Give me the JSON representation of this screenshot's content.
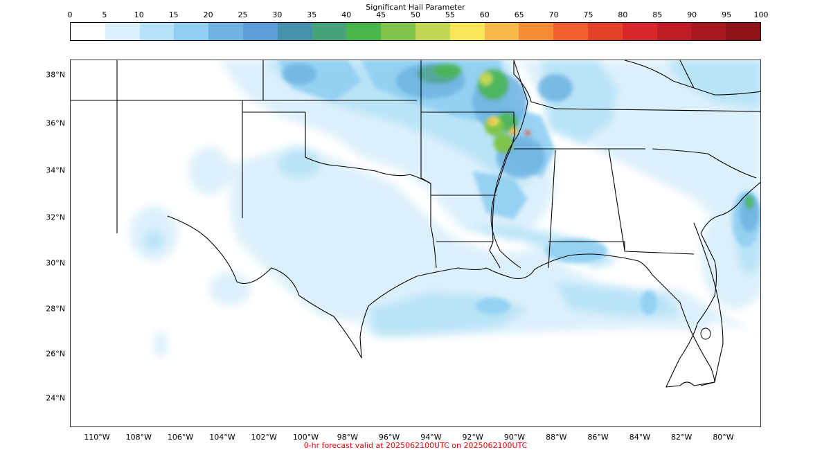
{
  "colorbar": {
    "title": "Significant Hail Parameter",
    "ticks": [
      "0",
      "5",
      "10",
      "15",
      "20",
      "25",
      "30",
      "35",
      "40",
      "45",
      "50",
      "55",
      "60",
      "65",
      "70",
      "75",
      "80",
      "85",
      "90",
      "95",
      "100"
    ],
    "colors": [
      "#ffffff",
      "#dbf0fb",
      "#b6e2f7",
      "#90cff2",
      "#6eb3e2",
      "#5a9ed8",
      "#4491ad",
      "#48a37c",
      "#49b54b",
      "#80c34a",
      "#c2d854",
      "#fae55a",
      "#f8b849",
      "#f58c34",
      "#f05f2c",
      "#e44228",
      "#d6282a",
      "#c01c25",
      "#a7191f",
      "#8d1317"
    ]
  },
  "map": {
    "lat_labels": [
      "38°N",
      "36°N",
      "34°N",
      "32°N",
      "30°N",
      "28°N",
      "26°N",
      "24°N"
    ],
    "lon_labels": [
      "110°W",
      "108°W",
      "106°W",
      "104°W",
      "102°W",
      "100°W",
      "98°W",
      "96°W",
      "94°W",
      "92°W",
      "90°W",
      "88°W",
      "86°W",
      "84°W",
      "82°W",
      "80°W"
    ],
    "boundary_color": "#000000"
  },
  "footer": {
    "text": "0-hr forecast valid at 2025062100UTC on 2025062100UTC",
    "color": "#ff0000"
  }
}
